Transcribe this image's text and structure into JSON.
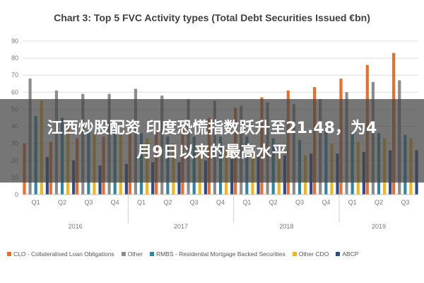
{
  "chart_data": {
    "type": "bar",
    "title": "Chart 3: Top 5 FVC Activity types (Total Debt Securities Issued €bn)",
    "ylim": [
      0,
      90
    ],
    "yticks": [
      0,
      10,
      20,
      30,
      40,
      50,
      60,
      70,
      80,
      90
    ],
    "grid": true,
    "legend_position": "bottom",
    "categories": [
      "Q1",
      "Q2",
      "Q3",
      "Q4",
      "Q1",
      "Q2",
      "Q3",
      "Q4",
      "Q1",
      "Q2",
      "Q3",
      "Q4",
      "Q1",
      "Q2",
      "Q3"
    ],
    "groups": [
      {
        "label": "2016",
        "count": 4
      },
      {
        "label": "2017",
        "count": 4
      },
      {
        "label": "2018",
        "count": 4
      },
      {
        "label": "2019",
        "count": 3
      }
    ],
    "series": [
      {
        "name": "CLO - Collateralised Loan Obligations",
        "color": "#e8702a",
        "values": [
          30,
          31,
          33,
          34,
          36,
          38,
          41,
          45,
          51,
          57,
          61,
          63,
          68,
          76,
          83
        ]
      },
      {
        "name": "Other",
        "color": "#8c8c8c",
        "values": [
          68,
          61,
          59,
          59,
          62,
          58,
          56,
          55,
          52,
          54,
          53,
          56,
          60,
          66,
          67
        ]
      },
      {
        "name": "RMBS - Residential Mortgage Backed Securities",
        "color": "#2e86ab",
        "values": [
          46,
          45,
          38,
          37,
          36,
          34,
          34,
          34,
          34,
          33,
          32,
          38,
          37,
          36,
          35
        ]
      },
      {
        "name": "Other CDO",
        "color": "#f2b61c",
        "values": [
          55,
          40,
          36,
          35,
          33,
          30,
          28,
          27,
          25,
          24,
          23,
          30,
          31,
          33,
          33
        ]
      },
      {
        "name": "ABCP",
        "color": "#2b4b8c",
        "values": [
          22,
          20,
          17,
          18,
          19,
          19,
          20,
          21,
          22,
          23,
          24,
          24,
          25,
          26,
          26
        ]
      }
    ]
  },
  "overlay": {
    "line1": "江西炒股配资 印度恐慌指数跃升至21.48，为4",
    "line2": "月9日以来的最高水平"
  }
}
